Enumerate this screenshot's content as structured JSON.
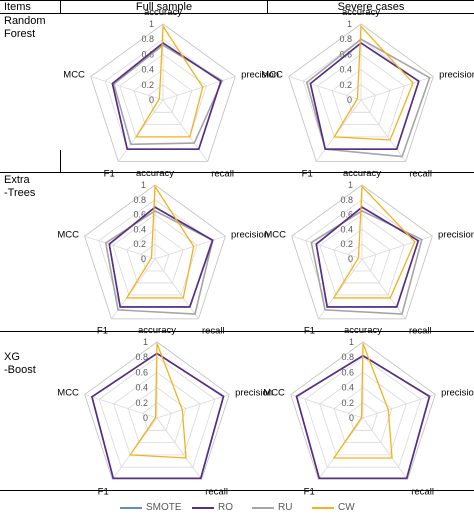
{
  "header": {
    "items": "Items",
    "full": "Full sample",
    "severe": "Severe cases"
  },
  "rows": [
    {
      "label": "Random\nForest"
    },
    {
      "label": "Extra\n-Trees"
    },
    {
      "label": "XG\n-Boost"
    }
  ],
  "colors": {
    "SMOTE": "#5b8fc7",
    "RO": "#5b2d86",
    "RU": "#a5a5a5",
    "CW": "#f3b21d",
    "grid": "#d9d9d9",
    "axis": "#bfbfbf",
    "tick": "#595959"
  },
  "chart_data": [
    {
      "type": "radar",
      "model": "Random Forest",
      "sample": "Full sample",
      "axes": [
        "accuracy",
        "precision",
        "recall",
        "F1",
        "MCC"
      ],
      "ticks": [
        "0",
        "0.2",
        "0.4",
        "0.6",
        "0.8",
        "1"
      ],
      "range": [
        0,
        1
      ],
      "series": [
        {
          "name": "SMOTE",
          "values": [
            0.75,
            0.8,
            0.8,
            0.8,
            0.7
          ]
        },
        {
          "name": "RO",
          "values": [
            0.75,
            0.8,
            0.8,
            0.8,
            0.7
          ]
        },
        {
          "name": "RU",
          "values": [
            0.72,
            0.82,
            0.7,
            0.72,
            0.68
          ]
        },
        {
          "name": "CW",
          "values": [
            0.97,
            0.55,
            0.6,
            0.6,
            0.05
          ]
        }
      ]
    },
    {
      "type": "radar",
      "model": "Random Forest",
      "sample": "Severe cases",
      "axes": [
        "accuracy",
        "precision",
        "recall",
        "F1",
        "MCC"
      ],
      "ticks": [
        "0",
        "0.2",
        "0.4",
        "0.6",
        "0.8",
        "1"
      ],
      "range": [
        0,
        1
      ],
      "series": [
        {
          "name": "SMOTE",
          "values": [
            0.75,
            0.8,
            0.8,
            0.8,
            0.7
          ]
        },
        {
          "name": "RO",
          "values": [
            0.75,
            0.8,
            0.8,
            0.8,
            0.7
          ]
        },
        {
          "name": "RU",
          "values": [
            0.8,
            0.95,
            0.92,
            0.8,
            0.75
          ]
        },
        {
          "name": "CW",
          "values": [
            0.97,
            0.72,
            0.65,
            0.6,
            0.05
          ]
        }
      ]
    },
    {
      "type": "radar",
      "model": "Extra-Trees",
      "sample": "Full sample",
      "axes": [
        "accuracy",
        "precision",
        "recall",
        "F1",
        "MCC"
      ],
      "ticks": [
        "0",
        "0.2",
        "0.4",
        "0.6",
        "0.8",
        "1"
      ],
      "range": [
        0,
        1
      ],
      "series": [
        {
          "name": "SMOTE",
          "values": [
            0.7,
            0.82,
            0.8,
            0.8,
            0.65
          ]
        },
        {
          "name": "RO",
          "values": [
            0.7,
            0.82,
            0.8,
            0.8,
            0.65
          ]
        },
        {
          "name": "RU",
          "values": [
            0.65,
            0.82,
            0.92,
            0.85,
            0.7
          ]
        },
        {
          "name": "CW",
          "values": [
            0.98,
            0.55,
            0.65,
            0.65,
            0.05
          ]
        }
      ]
    },
    {
      "type": "radar",
      "model": "Extra-Trees",
      "sample": "Severe cases",
      "axes": [
        "accuracy",
        "precision",
        "recall",
        "F1",
        "MCC"
      ],
      "ticks": [
        "0",
        "0.2",
        "0.4",
        "0.6",
        "0.8",
        "1"
      ],
      "range": [
        0,
        1
      ],
      "series": [
        {
          "name": "SMOTE",
          "values": [
            0.7,
            0.8,
            0.8,
            0.8,
            0.65
          ]
        },
        {
          "name": "RO",
          "values": [
            0.7,
            0.8,
            0.8,
            0.8,
            0.65
          ]
        },
        {
          "name": "RU",
          "values": [
            0.65,
            0.85,
            0.92,
            0.85,
            0.72
          ]
        },
        {
          "name": "CW",
          "values": [
            0.98,
            0.75,
            0.65,
            0.65,
            0.05
          ]
        }
      ]
    },
    {
      "type": "radar",
      "model": "XG-Boost",
      "sample": "Full sample",
      "axes": [
        "accuracy",
        "precision",
        "recall",
        "F1",
        "MCC"
      ],
      "ticks": [
        "0",
        "0.2",
        "0.4",
        "0.6",
        "0.8",
        "1"
      ],
      "range": [
        0,
        1
      ],
      "series": [
        {
          "name": "SMOTE",
          "values": [
            0.85,
            0.92,
            0.98,
            0.98,
            0.9
          ]
        },
        {
          "name": "RO",
          "values": [
            0.85,
            0.92,
            0.98,
            0.98,
            0.9
          ]
        },
        {
          "name": "RU",
          "values": [
            0.85,
            0.92,
            0.98,
            0.98,
            0.9
          ]
        },
        {
          "name": "CW",
          "values": [
            0.98,
            0.35,
            0.65,
            0.6,
            0.02
          ]
        }
      ]
    },
    {
      "type": "radar",
      "model": "XG-Boost",
      "sample": "Severe cases",
      "axes": [
        "accuracy",
        "precision",
        "recall",
        "F1",
        "MCC"
      ],
      "ticks": [
        "0",
        "0.2",
        "0.4",
        "0.6",
        "0.8",
        "1"
      ],
      "range": [
        0,
        1
      ],
      "series": [
        {
          "name": "SMOTE",
          "values": [
            0.82,
            0.92,
            0.98,
            0.98,
            0.92
          ]
        },
        {
          "name": "RO",
          "values": [
            0.82,
            0.92,
            0.98,
            0.98,
            0.92
          ]
        },
        {
          "name": "RU",
          "values": [
            0.82,
            0.92,
            0.98,
            0.98,
            0.92
          ]
        },
        {
          "name": "CW",
          "values": [
            0.98,
            0.35,
            0.65,
            0.65,
            0.02
          ]
        }
      ]
    }
  ],
  "legend": [
    {
      "name": "SMOTE"
    },
    {
      "name": "RO"
    },
    {
      "name": "RU"
    },
    {
      "name": "CW"
    }
  ]
}
